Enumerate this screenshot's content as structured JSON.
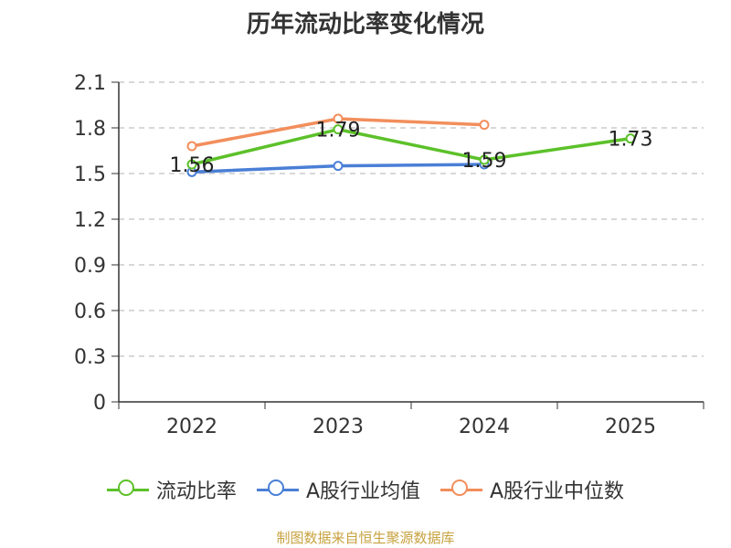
{
  "chart_data": {
    "type": "line",
    "title": "历年流动比率变化情况",
    "categories": [
      "2022",
      "2023",
      "2024",
      "2025"
    ],
    "ylim": [
      0,
      2.1
    ],
    "yticks": [
      "0",
      "0.3",
      "0.6",
      "0.9",
      "1.2",
      "1.5",
      "1.8",
      "2.1"
    ],
    "ytick_values": [
      0,
      0.3,
      0.6,
      0.9,
      1.2,
      1.5,
      1.8,
      2.1
    ],
    "grid": true,
    "legend_position": "bottom",
    "series": [
      {
        "name": "流动比率",
        "color": "#5cc12a",
        "values": [
          1.56,
          1.79,
          1.59,
          1.73
        ],
        "labels": [
          "1.56",
          "1.79",
          "1.59",
          "1.73"
        ]
      },
      {
        "name": "A股行业均值",
        "color": "#4a7fd6",
        "values": [
          1.51,
          1.55,
          1.56,
          null
        ]
      },
      {
        "name": "A股行业中位数",
        "color": "#f28e5c",
        "values": [
          1.68,
          1.86,
          1.82,
          null
        ]
      }
    ]
  },
  "source": "制图数据来自恒生聚源数据库"
}
